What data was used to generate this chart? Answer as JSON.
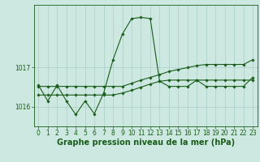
{
  "bg_color": "#cce8e0",
  "line_color": "#1a5c1a",
  "grid_color": "#aacfc8",
  "xlabel": "Graphe pression niveau de la mer (hPa)",
  "xlabel_fontsize": 7,
  "tick_fontsize": 5.5,
  "ylim": [
    1015.5,
    1018.6
  ],
  "xlim": [
    -0.5,
    23.5
  ],
  "yticks": [
    1016,
    1017
  ],
  "xticks": [
    0,
    1,
    2,
    3,
    4,
    5,
    6,
    7,
    8,
    9,
    10,
    11,
    12,
    13,
    14,
    15,
    16,
    17,
    18,
    19,
    20,
    21,
    22,
    23
  ],
  "series1": [
    1016.55,
    1016.15,
    1016.55,
    1016.15,
    1015.8,
    1016.15,
    1015.82,
    1016.35,
    1017.2,
    1017.85,
    1018.25,
    1018.28,
    1018.25,
    1016.65,
    1016.52,
    1016.52,
    1016.52,
    1016.68,
    1016.52,
    1016.52,
    1016.52,
    1016.52,
    1016.52,
    1016.75
  ],
  "series2": [
    1016.52,
    1016.52,
    1016.52,
    1016.52,
    1016.52,
    1016.52,
    1016.52,
    1016.52,
    1016.52,
    1016.52,
    1016.6,
    1016.68,
    1016.75,
    1016.82,
    1016.9,
    1016.95,
    1017.0,
    1017.05,
    1017.08,
    1017.08,
    1017.08,
    1017.08,
    1017.08,
    1017.2
  ],
  "series3": [
    1016.3,
    1016.3,
    1016.3,
    1016.3,
    1016.3,
    1016.3,
    1016.3,
    1016.3,
    1016.3,
    1016.35,
    1016.42,
    1016.5,
    1016.58,
    1016.65,
    1016.68,
    1016.68,
    1016.68,
    1016.68,
    1016.68,
    1016.68,
    1016.68,
    1016.68,
    1016.68,
    1016.68
  ]
}
